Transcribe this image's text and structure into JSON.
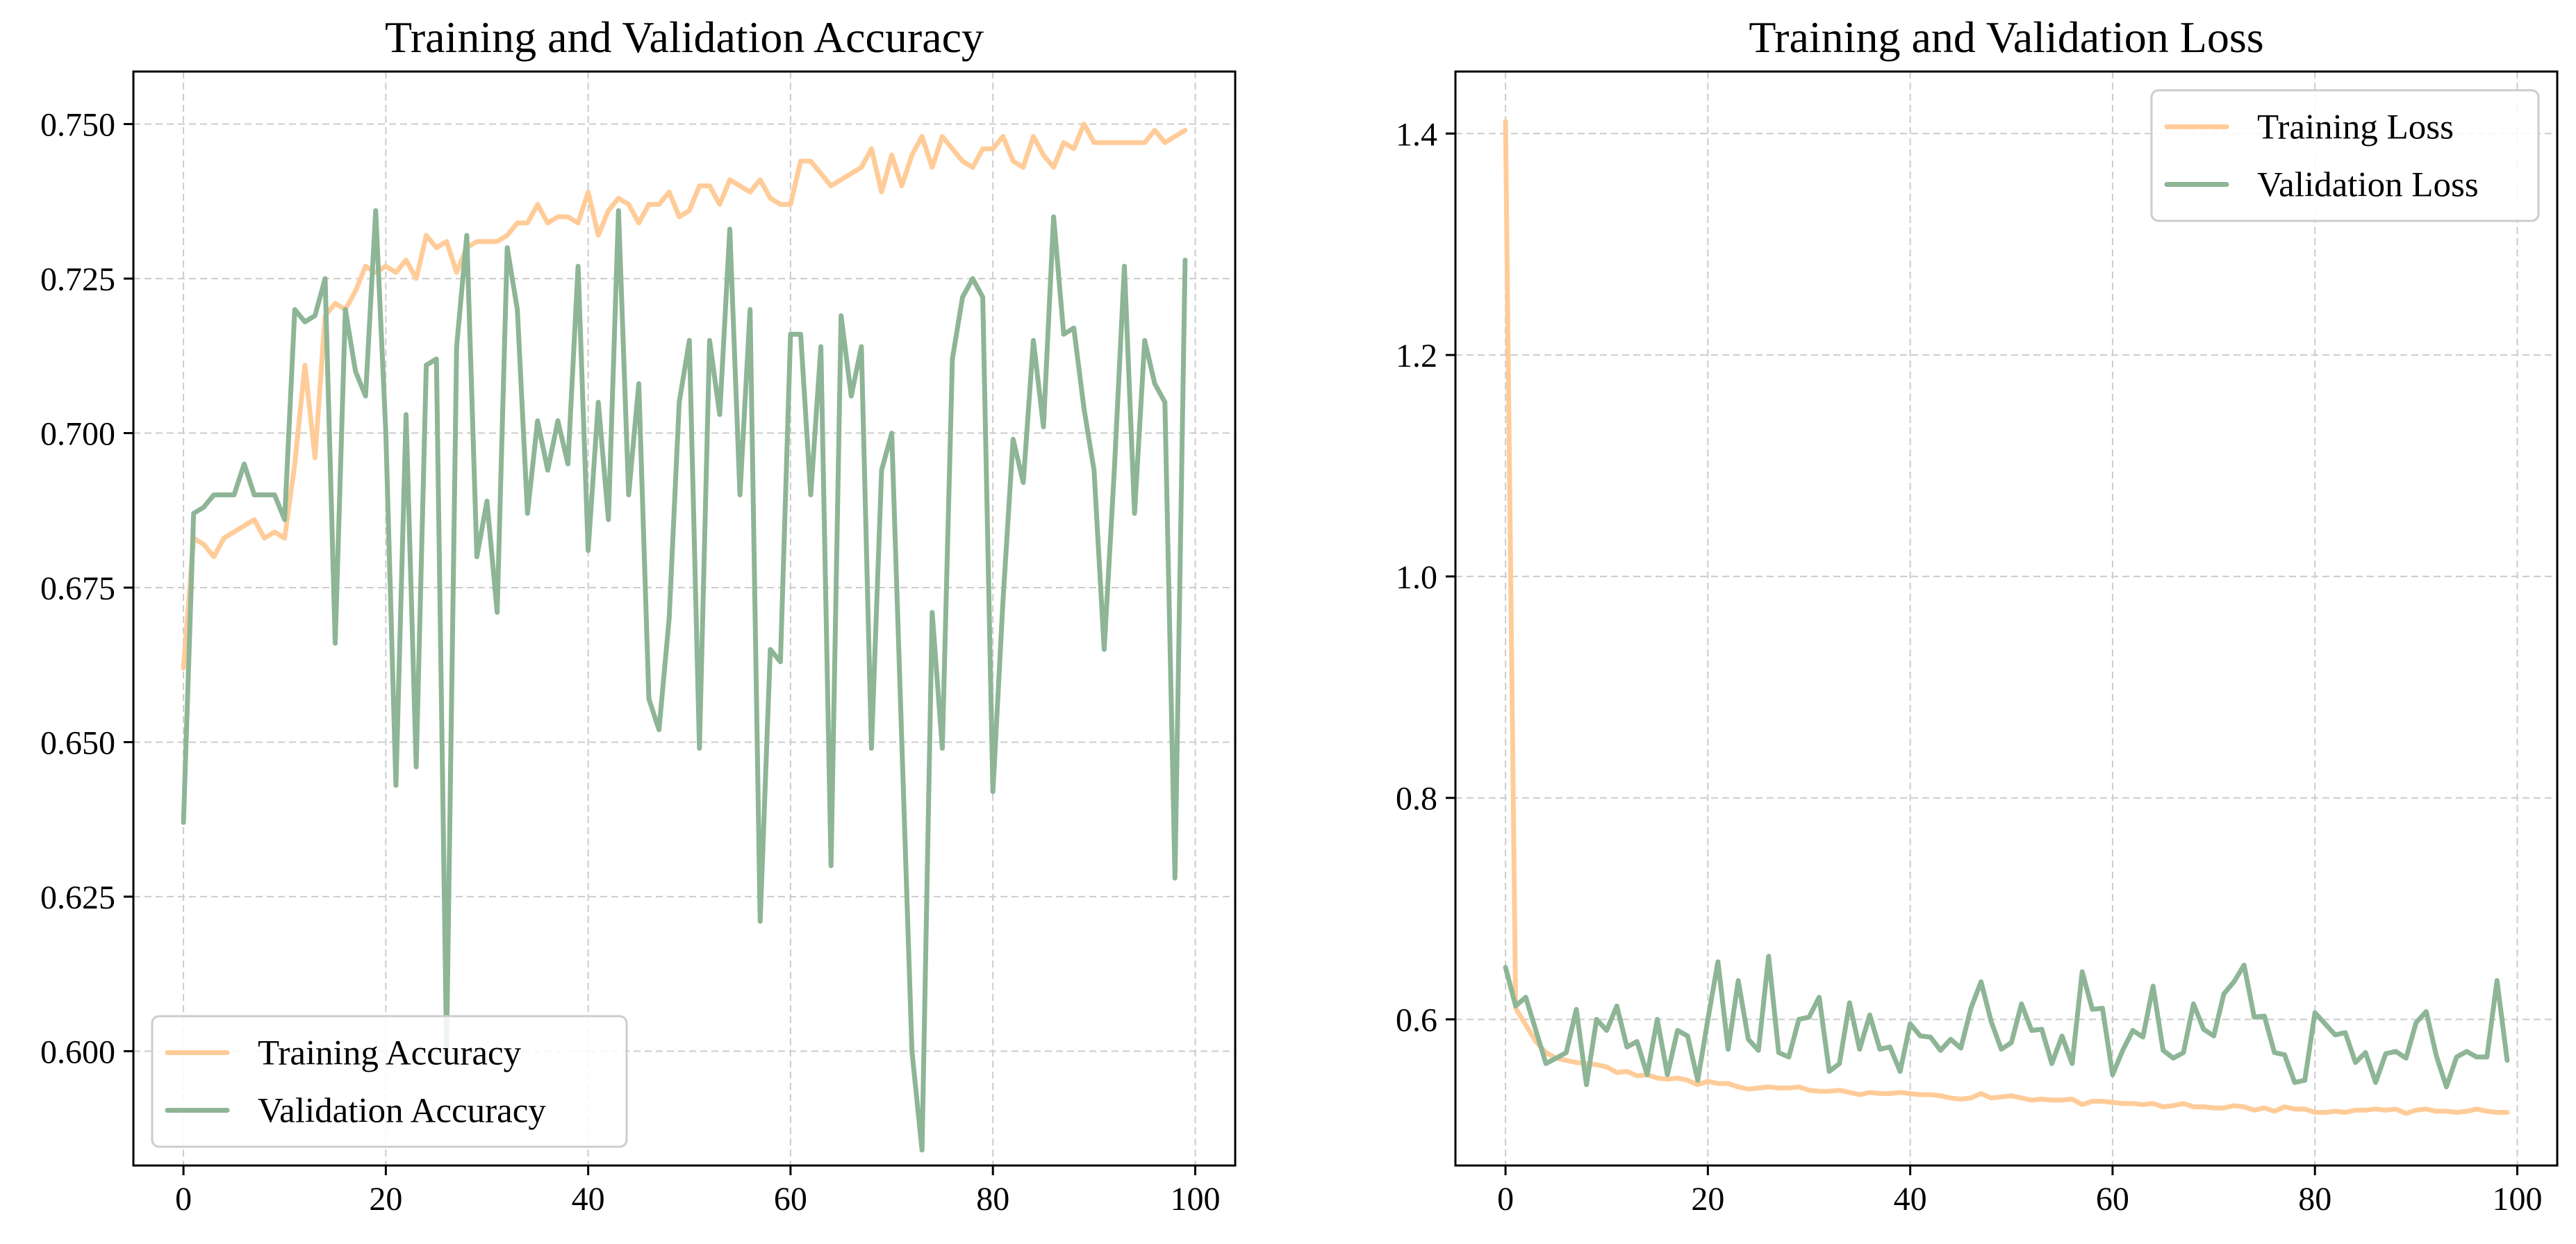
{
  "colors": {
    "training": "#FFCC99",
    "validation": "#8DB596"
  },
  "chart_data": [
    {
      "type": "line",
      "title": "Training and Validation Accuracy",
      "xlabel": "",
      "ylabel": "",
      "xlim": [
        -4.95,
        103.95
      ],
      "ylim": [
        0.5815,
        0.7585
      ],
      "xticks": [
        0,
        20,
        40,
        60,
        80,
        100
      ],
      "xtick_labels": [
        "0",
        "20",
        "40",
        "60",
        "80",
        "100"
      ],
      "yticks": [
        0.6,
        0.625,
        0.65,
        0.675,
        0.7,
        0.725,
        0.75
      ],
      "ytick_labels": [
        "0.600",
        "0.625",
        "0.650",
        "0.675",
        "0.700",
        "0.725",
        "0.750"
      ],
      "grid": true,
      "legend_position": "lower-left",
      "series": [
        {
          "name": "Training Accuracy",
          "color_key": "training",
          "x": [
            0,
            1,
            2,
            3,
            4,
            5,
            6,
            7,
            8,
            9,
            10,
            11,
            12,
            13,
            14,
            15,
            16,
            17,
            18,
            19,
            20,
            21,
            22,
            23,
            24,
            25,
            26,
            27,
            28,
            29,
            30,
            31,
            32,
            33,
            34,
            35,
            36,
            37,
            38,
            39,
            40,
            41,
            42,
            43,
            44,
            45,
            46,
            47,
            48,
            49,
            50,
            51,
            52,
            53,
            54,
            55,
            56,
            57,
            58,
            59,
            60,
            61,
            62,
            63,
            64,
            65,
            66,
            67,
            68,
            69,
            70,
            71,
            72,
            73,
            74,
            75,
            76,
            77,
            78,
            79,
            80,
            81,
            82,
            83,
            84,
            85,
            86,
            87,
            88,
            89,
            90,
            91,
            92,
            93,
            94,
            95,
            96,
            97,
            98,
            99
          ],
          "y": [
            0.662,
            0.683,
            0.682,
            0.68,
            0.683,
            0.684,
            0.685,
            0.686,
            0.683,
            0.684,
            0.683,
            0.695,
            0.711,
            0.696,
            0.719,
            0.721,
            0.72,
            0.723,
            0.727,
            0.726,
            0.727,
            0.726,
            0.728,
            0.725,
            0.732,
            0.73,
            0.731,
            0.726,
            0.73,
            0.731,
            0.731,
            0.731,
            0.732,
            0.734,
            0.734,
            0.737,
            0.734,
            0.735,
            0.735,
            0.734,
            0.739,
            0.732,
            0.736,
            0.738,
            0.737,
            0.734,
            0.737,
            0.737,
            0.739,
            0.735,
            0.736,
            0.74,
            0.74,
            0.737,
            0.741,
            0.74,
            0.739,
            0.741,
            0.738,
            0.737,
            0.737,
            0.744,
            0.744,
            0.742,
            0.74,
            0.741,
            0.742,
            0.743,
            0.746,
            0.739,
            0.745,
            0.74,
            0.745,
            0.748,
            0.743,
            0.748,
            0.746,
            0.744,
            0.743,
            0.746,
            0.746,
            0.748,
            0.744,
            0.743,
            0.748,
            0.745,
            0.743,
            0.747,
            0.746,
            0.75,
            0.747,
            0.747,
            0.747,
            0.747,
            0.747,
            0.747,
            0.749,
            0.747,
            0.748,
            0.749
          ]
        },
        {
          "name": "Validation Accuracy",
          "color_key": "validation",
          "x": [
            0,
            1,
            2,
            3,
            4,
            5,
            6,
            7,
            8,
            9,
            10,
            11,
            12,
            13,
            14,
            15,
            16,
            17,
            18,
            19,
            20,
            21,
            22,
            23,
            24,
            25,
            26,
            27,
            28,
            29,
            30,
            31,
            32,
            33,
            34,
            35,
            36,
            37,
            38,
            39,
            40,
            41,
            42,
            43,
            44,
            45,
            46,
            47,
            48,
            49,
            50,
            51,
            52,
            53,
            54,
            55,
            56,
            57,
            58,
            59,
            60,
            61,
            62,
            63,
            64,
            65,
            66,
            67,
            68,
            69,
            70,
            71,
            72,
            73,
            74,
            75,
            76,
            77,
            78,
            79,
            80,
            81,
            82,
            83,
            84,
            85,
            86,
            87,
            88,
            89,
            90,
            91,
            92,
            93,
            94,
            95,
            96,
            97,
            98,
            99
          ],
          "y": [
            0.637,
            0.687,
            0.688,
            0.69,
            0.69,
            0.69,
            0.695,
            0.69,
            0.69,
            0.69,
            0.686,
            0.72,
            0.718,
            0.719,
            0.725,
            0.666,
            0.72,
            0.71,
            0.706,
            0.736,
            0.7,
            0.643,
            0.703,
            0.646,
            0.711,
            0.712,
            0.6,
            0.714,
            0.732,
            0.68,
            0.689,
            0.671,
            0.73,
            0.72,
            0.687,
            0.702,
            0.694,
            0.702,
            0.695,
            0.727,
            0.681,
            0.705,
            0.686,
            0.736,
            0.69,
            0.708,
            0.657,
            0.652,
            0.67,
            0.705,
            0.715,
            0.649,
            0.715,
            0.703,
            0.733,
            0.69,
            0.72,
            0.621,
            0.665,
            0.663,
            0.716,
            0.716,
            0.69,
            0.714,
            0.63,
            0.719,
            0.706,
            0.714,
            0.649,
            0.694,
            0.7,
            0.65,
            0.6,
            0.584,
            0.671,
            0.649,
            0.712,
            0.722,
            0.725,
            0.722,
            0.642,
            0.673,
            0.699,
            0.692,
            0.715,
            0.701,
            0.735,
            0.716,
            0.717,
            0.704,
            0.694,
            0.665,
            0.694,
            0.727,
            0.687,
            0.715,
            0.708,
            0.705,
            0.628,
            0.728
          ]
        }
      ]
    },
    {
      "type": "line",
      "title": "Training and Validation Loss",
      "xlabel": "",
      "ylabel": "",
      "xlim": [
        -4.95,
        103.95
      ],
      "ylim": [
        0.468,
        1.456
      ],
      "xticks": [
        0,
        20,
        40,
        60,
        80,
        100
      ],
      "xtick_labels": [
        "0",
        "20",
        "40",
        "60",
        "80",
        "100"
      ],
      "yticks": [
        0.6,
        0.8,
        1.0,
        1.2,
        1.4
      ],
      "ytick_labels": [
        "0.6",
        "0.8",
        "1.0",
        "1.2",
        "1.4"
      ],
      "grid": true,
      "legend_position": "upper-right",
      "series": [
        {
          "name": "Training Loss",
          "color_key": "training",
          "x": [
            0,
            1,
            2,
            3,
            4,
            5,
            6,
            7,
            8,
            9,
            10,
            11,
            12,
            13,
            14,
            15,
            16,
            17,
            18,
            19,
            20,
            21,
            22,
            23,
            24,
            25,
            26,
            27,
            28,
            29,
            30,
            31,
            32,
            33,
            34,
            35,
            36,
            37,
            38,
            39,
            40,
            41,
            42,
            43,
            44,
            45,
            46,
            47,
            48,
            49,
            50,
            51,
            52,
            53,
            54,
            55,
            56,
            57,
            58,
            59,
            60,
            61,
            62,
            63,
            64,
            65,
            66,
            67,
            68,
            69,
            70,
            71,
            72,
            73,
            74,
            75,
            76,
            77,
            78,
            79,
            80,
            81,
            82,
            83,
            84,
            85,
            86,
            87,
            88,
            89,
            90,
            91,
            92,
            93,
            94,
            95,
            96,
            97,
            98,
            99
          ],
          "y": [
            1.411,
            0.61,
            0.595,
            0.58,
            0.57,
            0.565,
            0.563,
            0.561,
            0.56,
            0.559,
            0.557,
            0.552,
            0.553,
            0.549,
            0.55,
            0.547,
            0.546,
            0.547,
            0.545,
            0.541,
            0.544,
            0.542,
            0.542,
            0.539,
            0.537,
            0.538,
            0.539,
            0.538,
            0.538,
            0.539,
            0.536,
            0.535,
            0.535,
            0.536,
            0.534,
            0.532,
            0.534,
            0.533,
            0.533,
            0.534,
            0.533,
            0.532,
            0.532,
            0.531,
            0.529,
            0.528,
            0.529,
            0.533,
            0.529,
            0.53,
            0.531,
            0.529,
            0.527,
            0.528,
            0.527,
            0.527,
            0.528,
            0.523,
            0.526,
            0.526,
            0.525,
            0.524,
            0.524,
            0.523,
            0.524,
            0.521,
            0.522,
            0.524,
            0.521,
            0.521,
            0.52,
            0.52,
            0.522,
            0.521,
            0.518,
            0.52,
            0.517,
            0.521,
            0.519,
            0.519,
            0.516,
            0.516,
            0.517,
            0.516,
            0.518,
            0.518,
            0.519,
            0.518,
            0.519,
            0.515,
            0.518,
            0.519,
            0.517,
            0.517,
            0.516,
            0.517,
            0.519,
            0.517,
            0.516,
            0.516
          ]
        },
        {
          "name": "Validation Loss",
          "color_key": "validation",
          "x": [
            0,
            1,
            2,
            3,
            4,
            5,
            6,
            7,
            8,
            9,
            10,
            11,
            12,
            13,
            14,
            15,
            16,
            17,
            18,
            19,
            20,
            21,
            22,
            23,
            24,
            25,
            26,
            27,
            28,
            29,
            30,
            31,
            32,
            33,
            34,
            35,
            36,
            37,
            38,
            39,
            40,
            41,
            42,
            43,
            44,
            45,
            46,
            47,
            48,
            49,
            50,
            51,
            52,
            53,
            54,
            55,
            56,
            57,
            58,
            59,
            60,
            61,
            62,
            63,
            64,
            65,
            66,
            67,
            68,
            69,
            70,
            71,
            72,
            73,
            74,
            75,
            76,
            77,
            78,
            79,
            80,
            81,
            82,
            83,
            84,
            85,
            86,
            87,
            88,
            89,
            90,
            91,
            92,
            93,
            94,
            95,
            96,
            97,
            98,
            99
          ],
          "y": [
            0.647,
            0.612,
            0.62,
            0.59,
            0.56,
            0.565,
            0.57,
            0.609,
            0.541,
            0.6,
            0.59,
            0.612,
            0.575,
            0.58,
            0.55,
            0.6,
            0.55,
            0.59,
            0.585,
            0.545,
            0.6,
            0.652,
            0.573,
            0.635,
            0.582,
            0.572,
            0.657,
            0.57,
            0.566,
            0.6,
            0.602,
            0.62,
            0.553,
            0.56,
            0.615,
            0.573,
            0.604,
            0.573,
            0.575,
            0.553,
            0.596,
            0.585,
            0.584,
            0.572,
            0.582,
            0.574,
            0.61,
            0.634,
            0.598,
            0.573,
            0.579,
            0.614,
            0.59,
            0.591,
            0.56,
            0.585,
            0.56,
            0.643,
            0.609,
            0.61,
            0.55,
            0.572,
            0.59,
            0.584,
            0.63,
            0.572,
            0.565,
            0.57,
            0.614,
            0.591,
            0.585,
            0.623,
            0.634,
            0.649,
            0.602,
            0.603,
            0.57,
            0.568,
            0.543,
            0.545,
            0.606,
            0.596,
            0.586,
            0.588,
            0.561,
            0.57,
            0.543,
            0.569,
            0.571,
            0.565,
            0.597,
            0.607,
            0.567,
            0.539,
            0.566,
            0.571,
            0.566,
            0.566,
            0.635,
            0.563
          ]
        }
      ]
    }
  ]
}
